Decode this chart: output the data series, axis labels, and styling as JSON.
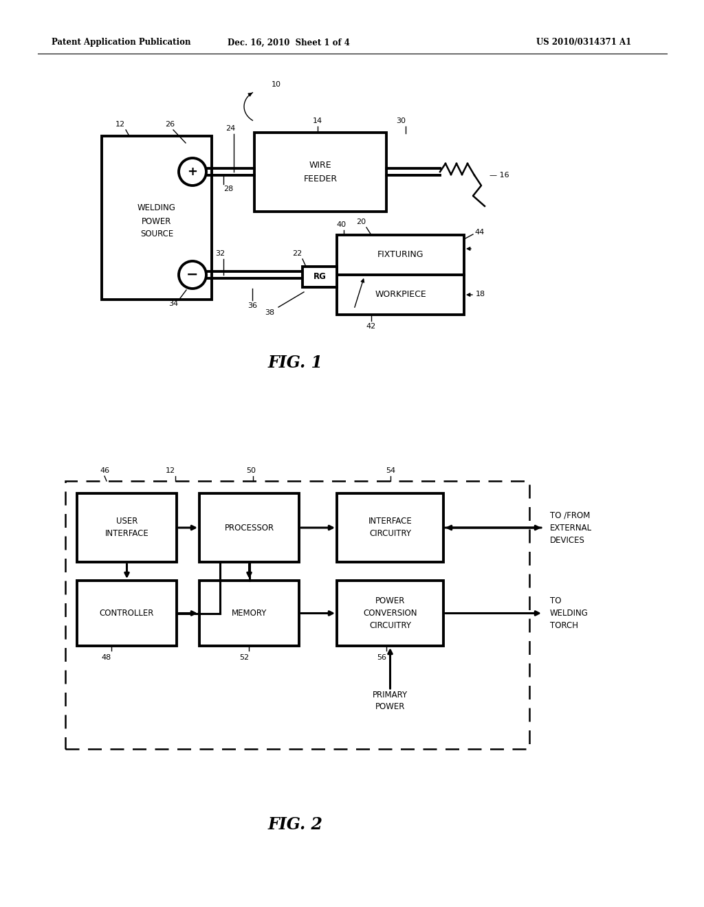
{
  "bg_color": "#ffffff",
  "header_left": "Patent Application Publication",
  "header_mid": "Dec. 16, 2010  Sheet 1 of 4",
  "header_right": "US 2010/0314371 A1",
  "fig1_label": "FIG. 1",
  "fig2_label": "FIG. 2",
  "line_color": "#000000"
}
